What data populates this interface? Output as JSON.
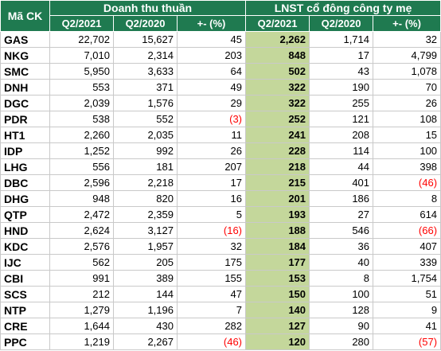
{
  "header": {
    "code_label": "Mã CK",
    "group1": "Doanh thu thuần",
    "group2": "LNST cổ đông công ty mẹ",
    "sub": [
      "Q2/2021",
      "Q2/2020",
      "+- (%)",
      "Q2/2021",
      "Q2/2020",
      "+- (%)"
    ]
  },
  "rows": [
    {
      "code": "GAS",
      "rev21": "22,702",
      "rev20": "15,627",
      "rev_chg": "45",
      "np21": "2,262",
      "np20": "1,714",
      "np_chg": "32"
    },
    {
      "code": "NKG",
      "rev21": "7,010",
      "rev20": "2,314",
      "rev_chg": "203",
      "np21": "848",
      "np20": "17",
      "np_chg": "4,799"
    },
    {
      "code": "SMC",
      "rev21": "5,950",
      "rev20": "3,633",
      "rev_chg": "64",
      "np21": "502",
      "np20": "43",
      "np_chg": "1,078"
    },
    {
      "code": "DNH",
      "rev21": "553",
      "rev20": "371",
      "rev_chg": "49",
      "np21": "322",
      "np20": "190",
      "np_chg": "70"
    },
    {
      "code": "DGC",
      "rev21": "2,039",
      "rev20": "1,576",
      "rev_chg": "29",
      "np21": "322",
      "np20": "255",
      "np_chg": "26"
    },
    {
      "code": "PDR",
      "rev21": "538",
      "rev20": "552",
      "rev_chg": "(3)",
      "np21": "252",
      "np20": "121",
      "np_chg": "108"
    },
    {
      "code": "HT1",
      "rev21": "2,260",
      "rev20": "2,035",
      "rev_chg": "11",
      "np21": "241",
      "np20": "208",
      "np_chg": "15"
    },
    {
      "code": "IDP",
      "rev21": "1,252",
      "rev20": "992",
      "rev_chg": "26",
      "np21": "228",
      "np20": "114",
      "np_chg": "100"
    },
    {
      "code": "LHG",
      "rev21": "556",
      "rev20": "181",
      "rev_chg": "207",
      "np21": "218",
      "np20": "44",
      "np_chg": "398"
    },
    {
      "code": "DBC",
      "rev21": "2,596",
      "rev20": "2,218",
      "rev_chg": "17",
      "np21": "215",
      "np20": "401",
      "np_chg": "(46)"
    },
    {
      "code": "DHG",
      "rev21": "948",
      "rev20": "820",
      "rev_chg": "16",
      "np21": "201",
      "np20": "186",
      "np_chg": "8"
    },
    {
      "code": "QTP",
      "rev21": "2,472",
      "rev20": "2,359",
      "rev_chg": "5",
      "np21": "193",
      "np20": "27",
      "np_chg": "614"
    },
    {
      "code": "HND",
      "rev21": "2,624",
      "rev20": "3,127",
      "rev_chg": "(16)",
      "np21": "188",
      "np20": "546",
      "np_chg": "(66)"
    },
    {
      "code": "KDC",
      "rev21": "2,576",
      "rev20": "1,957",
      "rev_chg": "32",
      "np21": "184",
      "np20": "36",
      "np_chg": "407"
    },
    {
      "code": "IJC",
      "rev21": "562",
      "rev20": "205",
      "rev_chg": "175",
      "np21": "177",
      "np20": "40",
      "np_chg": "339"
    },
    {
      "code": "CBI",
      "rev21": "991",
      "rev20": "389",
      "rev_chg": "155",
      "np21": "153",
      "np20": "8",
      "np_chg": "1,754"
    },
    {
      "code": "SCS",
      "rev21": "212",
      "rev20": "144",
      "rev_chg": "47",
      "np21": "150",
      "np20": "100",
      "np_chg": "51"
    },
    {
      "code": "NTP",
      "rev21": "1,279",
      "rev20": "1,196",
      "rev_chg": "7",
      "np21": "140",
      "np20": "128",
      "np_chg": "9"
    },
    {
      "code": "CRE",
      "rev21": "1,644",
      "rev20": "430",
      "rev_chg": "282",
      "np21": "127",
      "np20": "90",
      "np_chg": "41"
    },
    {
      "code": "PPC",
      "rev21": "1,219",
      "rev20": "2,267",
      "rev_chg": "(46)",
      "np21": "120",
      "np20": "280",
      "np_chg": "(57)"
    }
  ],
  "colors": {
    "header_bg": "#1f7a50",
    "highlight_bg": "#c4d79b",
    "negative": "#ff0000"
  }
}
